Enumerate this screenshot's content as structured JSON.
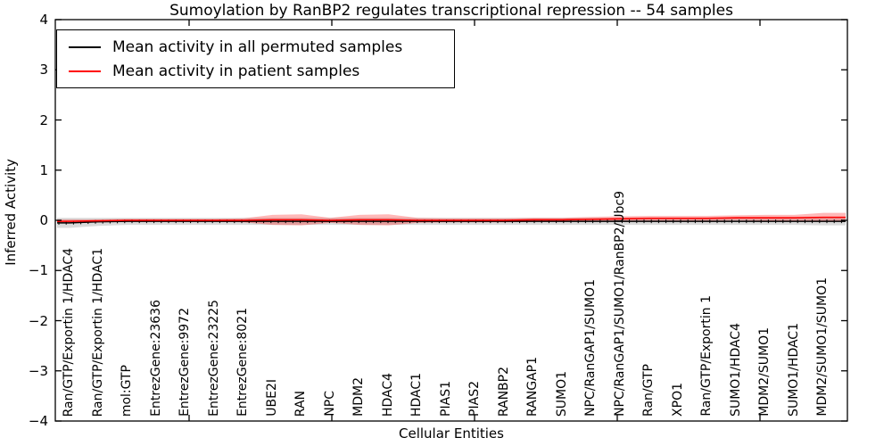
{
  "chart_data": {
    "type": "line",
    "title": "Sumoylation by RanBP2 regulates transcriptional repression -- 54 samples",
    "xlabel": "Cellular Entities",
    "ylabel": "Inferred Activity",
    "ylim": [
      -4,
      4
    ],
    "grid": false,
    "legend_position": "upper left",
    "yticks": [
      {
        "v": 4,
        "label": "4"
      },
      {
        "v": 3,
        "label": "3"
      },
      {
        "v": 2,
        "label": "2"
      },
      {
        "v": 1,
        "label": "1"
      },
      {
        "v": 0,
        "label": "0"
      },
      {
        "v": -1,
        "label": "−1"
      },
      {
        "v": -2,
        "label": "−2"
      },
      {
        "v": -3,
        "label": "−3"
      },
      {
        "v": -4,
        "label": "−4"
      }
    ],
    "categories": [
      "Ran/GTP/Exportin 1/HDAC4",
      "Ran/GTP/Exportin 1/HDAC1",
      "mol:GTP",
      "EntrezGene:23636",
      "EntrezGene:9972",
      "EntrezGene:23225",
      "EntrezGene:8021",
      "UBE2I",
      "RAN",
      "NPC",
      "MDM2",
      "HDAC4",
      "HDAC1",
      "PIAS1",
      "PIAS2",
      "RANBP2",
      "RANGAP1",
      "SUMO1",
      "NPC/RanGAP1/SUMO1",
      "NPC/RanGAP1/SUMO1/RanBP2/Ubc9",
      "Ran/GTP",
      "XPO1",
      "Ran/GTP/Exportin 1",
      "SUMO1/HDAC4",
      "MDM2/SUMO1",
      "SUMO1/HDAC1",
      "MDM2/SUMO1/SUMO1"
    ],
    "series": [
      {
        "id": "permuted",
        "name": "Mean activity in all permuted samples",
        "color": "#000000",
        "band_color": "rgba(150,150,150,0.35)",
        "marker": "+",
        "values": [
          -0.05,
          -0.03,
          -0.02,
          -0.02,
          -0.02,
          -0.02,
          -0.02,
          -0.02,
          -0.02,
          -0.02,
          -0.02,
          -0.02,
          -0.02,
          -0.02,
          -0.02,
          -0.02,
          -0.02,
          -0.02,
          -0.02,
          -0.02,
          -0.02,
          -0.02,
          -0.02,
          -0.02,
          -0.02,
          -0.02,
          -0.02
        ],
        "band_half": [
          0.1,
          0.08,
          0.07,
          0.07,
          0.07,
          0.07,
          0.07,
          0.07,
          0.07,
          0.07,
          0.07,
          0.07,
          0.07,
          0.07,
          0.07,
          0.07,
          0.07,
          0.07,
          0.07,
          0.07,
          0.07,
          0.07,
          0.07,
          0.07,
          0.07,
          0.07,
          0.08
        ]
      },
      {
        "id": "patient",
        "name": "Mean activity in patient samples",
        "color": "#ff0000",
        "band_color": "rgba(255,0,0,0.28)",
        "marker": "none",
        "values": [
          -0.02,
          -0.01,
          0.0,
          0.0,
          0.0,
          0.0,
          0.0,
          0.01,
          0.01,
          0.0,
          0.01,
          0.01,
          0.0,
          0.0,
          0.0,
          0.0,
          0.01,
          0.01,
          0.02,
          0.03,
          0.04,
          0.04,
          0.04,
          0.05,
          0.05,
          0.05,
          0.06
        ],
        "band_half": [
          0.04,
          0.03,
          0.03,
          0.03,
          0.03,
          0.03,
          0.04,
          0.1,
          0.11,
          0.05,
          0.1,
          0.11,
          0.05,
          0.04,
          0.04,
          0.04,
          0.04,
          0.04,
          0.05,
          0.05,
          0.05,
          0.05,
          0.05,
          0.05,
          0.06,
          0.06,
          0.09
        ]
      }
    ]
  }
}
